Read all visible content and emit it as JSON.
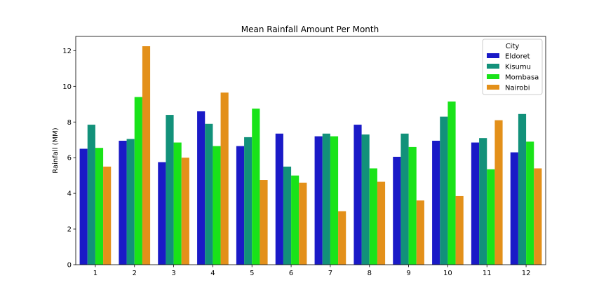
{
  "chart_data": {
    "type": "bar",
    "title": "Mean Rainfall Amount Per Month",
    "xlabel": "",
    "ylabel": "Rainfall (MM)",
    "categories": [
      "1",
      "2",
      "3",
      "4",
      "5",
      "6",
      "7",
      "8",
      "9",
      "10",
      "11",
      "12"
    ],
    "ylim": [
      0,
      12.8
    ],
    "yticks": [
      0,
      2,
      4,
      6,
      8,
      10,
      12
    ],
    "grid": false,
    "legend": {
      "title": "City",
      "placement": "top-right"
    },
    "series": [
      {
        "name": "Eldoret",
        "color": "#1a1ac7",
        "values": [
          6.5,
          6.95,
          5.75,
          8.6,
          6.65,
          7.35,
          7.2,
          7.85,
          6.05,
          6.95,
          6.85,
          6.3
        ]
      },
      {
        "name": "Kisumu",
        "color": "#12917a",
        "values": [
          7.85,
          7.05,
          8.4,
          7.9,
          7.15,
          5.5,
          7.35,
          7.3,
          7.35,
          8.3,
          7.1,
          8.45
        ]
      },
      {
        "name": "Mombasa",
        "color": "#19e319",
        "values": [
          6.55,
          9.4,
          6.85,
          6.65,
          8.75,
          5.0,
          7.2,
          5.4,
          6.6,
          9.15,
          5.35,
          6.9
        ]
      },
      {
        "name": "Nairobi",
        "color": "#e3901a",
        "values": [
          5.5,
          12.25,
          6.0,
          9.65,
          4.75,
          4.6,
          3.0,
          4.65,
          3.6,
          3.85,
          8.1,
          5.4
        ]
      }
    ]
  }
}
